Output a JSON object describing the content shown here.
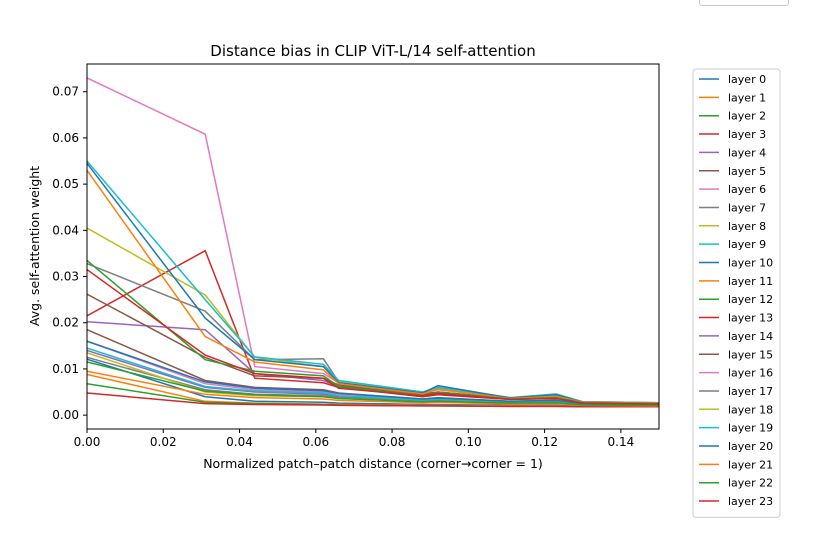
{
  "chart_data": {
    "type": "line",
    "title": "Distance bias in CLIP ViT-L/14 self-attention",
    "xlabel": "Normalized patch–patch distance (corner→corner = 1)",
    "ylabel": "Avg. self-attention weight",
    "xlim": [
      0,
      0.15
    ],
    "ylim": [
      -0.003,
      0.076
    ],
    "xticks": [
      0.0,
      0.02,
      0.04,
      0.06,
      0.08,
      0.1,
      0.12,
      0.14
    ],
    "xtick_labels": [
      "0.00",
      "0.02",
      "0.04",
      "0.06",
      "0.08",
      "0.10",
      "0.12",
      "0.14"
    ],
    "yticks": [
      0.0,
      0.01,
      0.02,
      0.03,
      0.04,
      0.05,
      0.06,
      0.07
    ],
    "ytick_labels": [
      "0.00",
      "0.01",
      "0.02",
      "0.03",
      "0.04",
      "0.05",
      "0.06",
      "0.07"
    ],
    "grid": false,
    "legend_position": "outside-right",
    "x": [
      0.0,
      0.031,
      0.044,
      0.062,
      0.066,
      0.088,
      0.092,
      0.111,
      0.123,
      0.13,
      0.15
    ],
    "series": [
      {
        "name": "layer 0",
        "color": "#1f77b4",
        "values": [
          0.0121,
          0.004,
          0.003,
          0.0028,
          0.0026,
          0.0023,
          0.0023,
          0.0021,
          0.0021,
          0.002,
          0.0019
        ]
      },
      {
        "name": "layer 1",
        "color": "#ff7f0e",
        "values": [
          0.0088,
          0.003,
          0.0026,
          0.0024,
          0.0023,
          0.0021,
          0.0021,
          0.002,
          0.002,
          0.0019,
          0.0018
        ]
      },
      {
        "name": "layer 2",
        "color": "#2ca02c",
        "values": [
          0.0068,
          0.0028,
          0.0025,
          0.0023,
          0.0022,
          0.002,
          0.002,
          0.0019,
          0.0019,
          0.0018,
          0.0018
        ]
      },
      {
        "name": "layer 3",
        "color": "#d62728",
        "values": [
          0.0048,
          0.0025,
          0.0023,
          0.0022,
          0.0021,
          0.002,
          0.002,
          0.0019,
          0.0019,
          0.0018,
          0.0018
        ]
      },
      {
        "name": "layer 4",
        "color": "#9467bd",
        "values": [
          0.014,
          0.006,
          0.005,
          0.0045,
          0.004,
          0.0032,
          0.0033,
          0.0028,
          0.003,
          0.0024,
          0.0022
        ]
      },
      {
        "name": "layer 5",
        "color": "#8c564b",
        "values": [
          0.0185,
          0.0075,
          0.006,
          0.0055,
          0.0048,
          0.0035,
          0.0038,
          0.003,
          0.0032,
          0.0025,
          0.0023
        ]
      },
      {
        "name": "layer 6",
        "color": "#e377c2",
        "values": [
          0.016,
          0.0068,
          0.0055,
          0.005,
          0.0045,
          0.0034,
          0.0036,
          0.0029,
          0.0031,
          0.0024,
          0.0022
        ]
      },
      {
        "name": "layer 7",
        "color": "#7f7f7f",
        "values": [
          0.0125,
          0.0055,
          0.0045,
          0.0042,
          0.0038,
          0.003,
          0.0031,
          0.0027,
          0.0028,
          0.0023,
          0.0021
        ]
      },
      {
        "name": "layer 8",
        "color": "#bcbd22",
        "values": [
          0.0135,
          0.005,
          0.0042,
          0.004,
          0.0036,
          0.0029,
          0.003,
          0.0026,
          0.0027,
          0.0022,
          0.0021
        ]
      },
      {
        "name": "layer 9",
        "color": "#17becf",
        "values": [
          0.0145,
          0.0062,
          0.0052,
          0.0048,
          0.0042,
          0.0033,
          0.0035,
          0.0029,
          0.0031,
          0.0024,
          0.0022
        ]
      },
      {
        "name": "layer 10",
        "color": "#1f77b4",
        "values": [
          0.016,
          0.0072,
          0.0058,
          0.0053,
          0.0047,
          0.0035,
          0.0037,
          0.003,
          0.0032,
          0.0025,
          0.0023
        ]
      },
      {
        "name": "layer 11",
        "color": "#ff7f0e",
        "values": [
          0.0095,
          0.0045,
          0.0038,
          0.0035,
          0.0032,
          0.0027,
          0.0028,
          0.0024,
          0.0025,
          0.0021,
          0.002
        ]
      },
      {
        "name": "layer 12",
        "color": "#2ca02c",
        "values": [
          0.0115,
          0.0052,
          0.0044,
          0.004,
          0.0036,
          0.0029,
          0.003,
          0.0026,
          0.0027,
          0.0022,
          0.0021
        ]
      },
      {
        "name": "layer 13",
        "color": "#d62728",
        "values": [
          0.0215,
          0.0356,
          0.008,
          0.007,
          0.006,
          0.004,
          0.0044,
          0.0034,
          0.0036,
          0.0027,
          0.0025
        ]
      },
      {
        "name": "layer 14",
        "color": "#9467bd",
        "values": [
          0.0202,
          0.0185,
          0.009,
          0.0075,
          0.0062,
          0.0045,
          0.0048,
          0.0036,
          0.0038,
          0.0028,
          0.0026
        ]
      },
      {
        "name": "layer 15",
        "color": "#8c564b",
        "values": [
          0.0262,
          0.0125,
          0.0085,
          0.008,
          0.0065,
          0.0046,
          0.005,
          0.0036,
          0.0039,
          0.0028,
          0.0026
        ]
      },
      {
        "name": "layer 16",
        "color": "#e377c2",
        "values": [
          0.073,
          0.0608,
          0.0105,
          0.009,
          0.007,
          0.005,
          0.0055,
          0.0038,
          0.0042,
          0.0029,
          0.0027
        ]
      },
      {
        "name": "layer 17",
        "color": "#7f7f7f",
        "values": [
          0.0328,
          0.0225,
          0.012,
          0.0122,
          0.0072,
          0.0048,
          0.006,
          0.0036,
          0.004,
          0.0028,
          0.0026
        ]
      },
      {
        "name": "layer 18",
        "color": "#bcbd22",
        "values": [
          0.0405,
          0.026,
          0.0125,
          0.0105,
          0.0072,
          0.005,
          0.0058,
          0.0037,
          0.0042,
          0.0029,
          0.0027
        ]
      },
      {
        "name": "layer 19",
        "color": "#17becf",
        "values": [
          0.055,
          0.025,
          0.0126,
          0.011,
          0.0075,
          0.005,
          0.006,
          0.0038,
          0.0046,
          0.0029,
          0.0027
        ]
      },
      {
        "name": "layer 20",
        "color": "#1f77b4",
        "values": [
          0.0545,
          0.021,
          0.012,
          0.0105,
          0.007,
          0.0048,
          0.0064,
          0.0037,
          0.0044,
          0.0028,
          0.0026
        ]
      },
      {
        "name": "layer 21",
        "color": "#ff7f0e",
        "values": [
          0.053,
          0.017,
          0.0115,
          0.0098,
          0.0068,
          0.0046,
          0.0056,
          0.0036,
          0.0041,
          0.0028,
          0.0026
        ]
      },
      {
        "name": "layer 22",
        "color": "#2ca02c",
        "values": [
          0.0335,
          0.012,
          0.0095,
          0.0085,
          0.0062,
          0.0043,
          0.005,
          0.0035,
          0.0038,
          0.0027,
          0.0025
        ]
      },
      {
        "name": "layer 23",
        "color": "#d62728",
        "values": [
          0.0315,
          0.013,
          0.009,
          0.008,
          0.0058,
          0.0042,
          0.0047,
          0.0034,
          0.0036,
          0.0026,
          0.0024
        ]
      }
    ]
  }
}
